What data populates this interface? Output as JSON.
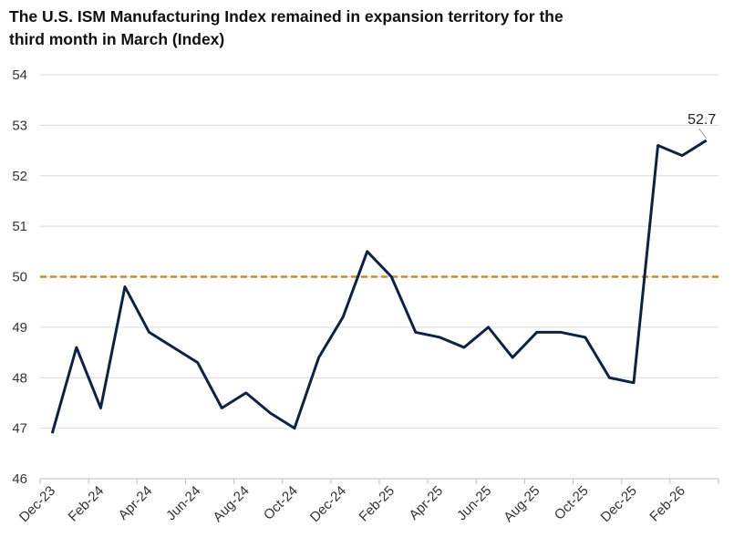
{
  "chart_data": {
    "type": "line",
    "title": "The U.S. ISM Manufacturing  Index remained in expansion territory for the third month in March (Index)",
    "categories": [
      "Dec-23",
      "Jan-24",
      "Feb-24",
      "Mar-24",
      "Apr-24",
      "May-24",
      "Jun-24",
      "Jul-24",
      "Aug-24",
      "Sep-24",
      "Oct-24",
      "Nov-24",
      "Dec-24",
      "Jan-25",
      "Feb-25",
      "Mar-25",
      "Apr-25",
      "May-25",
      "Jun-25",
      "Jul-25",
      "Aug-25",
      "Sep-25",
      "Oct-25",
      "Nov-25",
      "Dec-25",
      "Jan-26",
      "Feb-26",
      "Mar-26"
    ],
    "x_tick_labels": [
      "Dec-23",
      "Feb-24",
      "Apr-24",
      "Jun-24",
      "Aug-24",
      "Oct-24",
      "Dec-24",
      "Feb-25",
      "Apr-25",
      "Jun-25",
      "Aug-25",
      "Oct-25",
      "Dec-25",
      "Feb-26"
    ],
    "values": [
      46.9,
      48.6,
      47.4,
      49.8,
      48.9,
      48.6,
      48.3,
      47.4,
      47.7,
      47.3,
      47.0,
      48.4,
      49.2,
      50.5,
      50.0,
      48.9,
      48.8,
      48.6,
      49.0,
      48.4,
      48.9,
      48.9,
      48.8,
      48.0,
      47.9,
      52.6,
      52.4,
      52.7
    ],
    "ylim": [
      46,
      54
    ],
    "y_ticks": [
      46,
      47,
      48,
      49,
      50,
      51,
      52,
      53,
      54
    ],
    "reference_line": {
      "value": 50,
      "style": "dashed",
      "color": "#C0902C"
    },
    "line_color": "#0E2245",
    "data_label": {
      "category": "Mar-26",
      "text": "52.7"
    },
    "grid": true,
    "xlabel": "",
    "ylabel": ""
  }
}
